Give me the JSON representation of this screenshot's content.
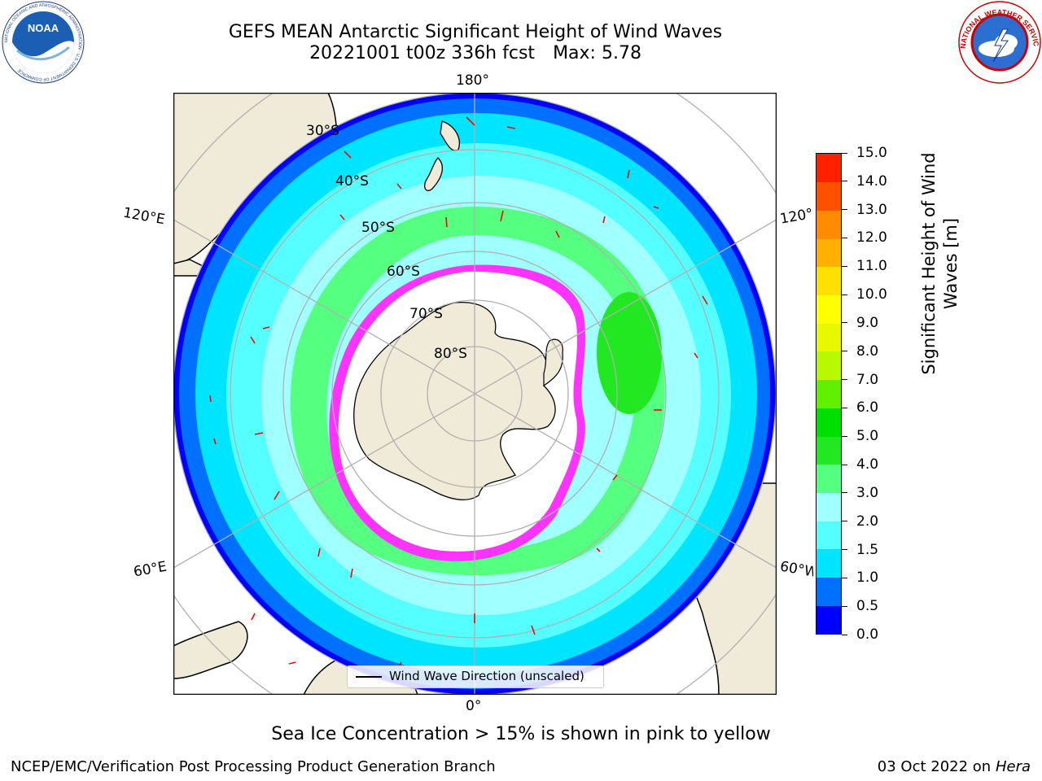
{
  "title": {
    "line1": "GEFS MEAN Antarctic Significant Height of Wind Waves",
    "run": "20221001 t00z 336h fcst",
    "max": "Max: 5.78"
  },
  "logos": {
    "noaa_text": "NOAA",
    "noaa_ring_text": "NATIONAL OCEANIC AND ATMOSPHERIC ADMINISTRATION · U.S. DEPARTMENT OF COMMERCE",
    "nws_ring_text": "NATIONAL WEATHER SERVICE"
  },
  "map": {
    "projection": "south-polar-stereographic",
    "longitude_labels": {
      "top": "180°",
      "bottom": "0°",
      "left_upper": "120°E",
      "left_lower": "60°E",
      "right_upper": "120°",
      "right_lower": "60°W"
    },
    "latitude_labels": [
      "30°S",
      "40°S",
      "50°S",
      "60°S",
      "70°S",
      "80°S"
    ],
    "legend": "Wind Wave Direction (unscaled)",
    "colors": {
      "land": "#efebd8",
      "ice_free_open": "#ffffff",
      "ice_edge": "#ff33ff",
      "ice_inner": "#ffcc33",
      "arrow": "#ff0000",
      "grid": "#b0b0b0"
    }
  },
  "colorbar": {
    "label": "Significant Height of Wind Waves [m]",
    "label_line1": "Significant Height of Wind",
    "label_line2": "Waves [m]",
    "ticks": [
      "0.0",
      "0.5",
      "1.0",
      "1.5",
      "2.0",
      "3.0",
      "4.0",
      "5.0",
      "6.0",
      "7.0",
      "8.0",
      "9.0",
      "10.0",
      "11.0",
      "12.0",
      "13.0",
      "14.0",
      "15.0"
    ],
    "colors": [
      "#0000ff",
      "#0070ff",
      "#00e5ff",
      "#55ffff",
      "#a0ffff",
      "#55ff80",
      "#22e822",
      "#00e000",
      "#60f000",
      "#b8f800",
      "#e8f800",
      "#ffff00",
      "#ffe000",
      "#ffb000",
      "#ff8c00",
      "#ff5000",
      "#ff2000"
    ]
  },
  "footer": {
    "note": "Sea Ice Concentration > 15% is shown in pink to yellow",
    "credit": "NCEP/EMC/Verification Post Processing Product Generation Branch",
    "date": "03 Oct 2022 on",
    "host": "Hera"
  }
}
